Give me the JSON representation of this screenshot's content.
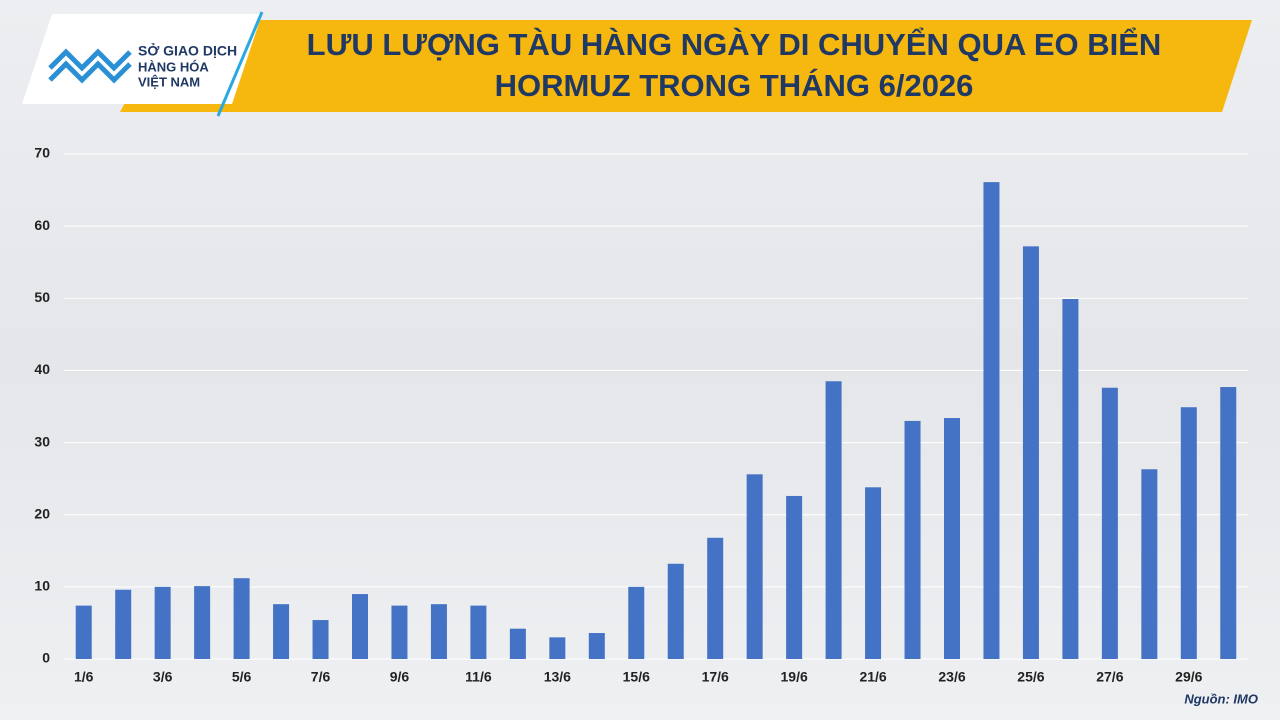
{
  "logo": {
    "lines": [
      "SỞ GIAO DỊCH",
      "HÀNG HÓA",
      "VIỆT NAM"
    ]
  },
  "chart_data": {
    "type": "bar",
    "title": [
      "LƯU LƯỢNG TÀU HÀNG NGÀY DI CHUYỂN QUA EO BIỂN",
      "HORMUZ TRONG THÁNG 6/2026"
    ],
    "categories": [
      "1/6",
      null,
      "3/6",
      null,
      "5/6",
      null,
      "7/6",
      null,
      "9/6",
      null,
      "11/6",
      null,
      "13/6",
      null,
      "15/6",
      null,
      "17/6",
      null,
      "19/6",
      null,
      "21/6",
      null,
      "23/6",
      null,
      "25/6",
      null,
      "27/6",
      null,
      "29/6",
      null
    ],
    "values": [
      7.4,
      9.6,
      10.0,
      10.1,
      11.2,
      7.6,
      5.4,
      9.0,
      7.4,
      7.6,
      7.4,
      4.2,
      3.0,
      3.6,
      10.0,
      13.2,
      16.8,
      25.6,
      22.6,
      38.5,
      23.8,
      33.0,
      33.4,
      66.1,
      57.2,
      49.9,
      37.6,
      26.3,
      34.9,
      37.7
    ],
    "color": "#4472c4",
    "ylim": [
      0,
      70
    ],
    "yticks": [
      0,
      10,
      20,
      30,
      40,
      50,
      60,
      70
    ],
    "grid": true,
    "source": "Nguồn: IMO"
  }
}
